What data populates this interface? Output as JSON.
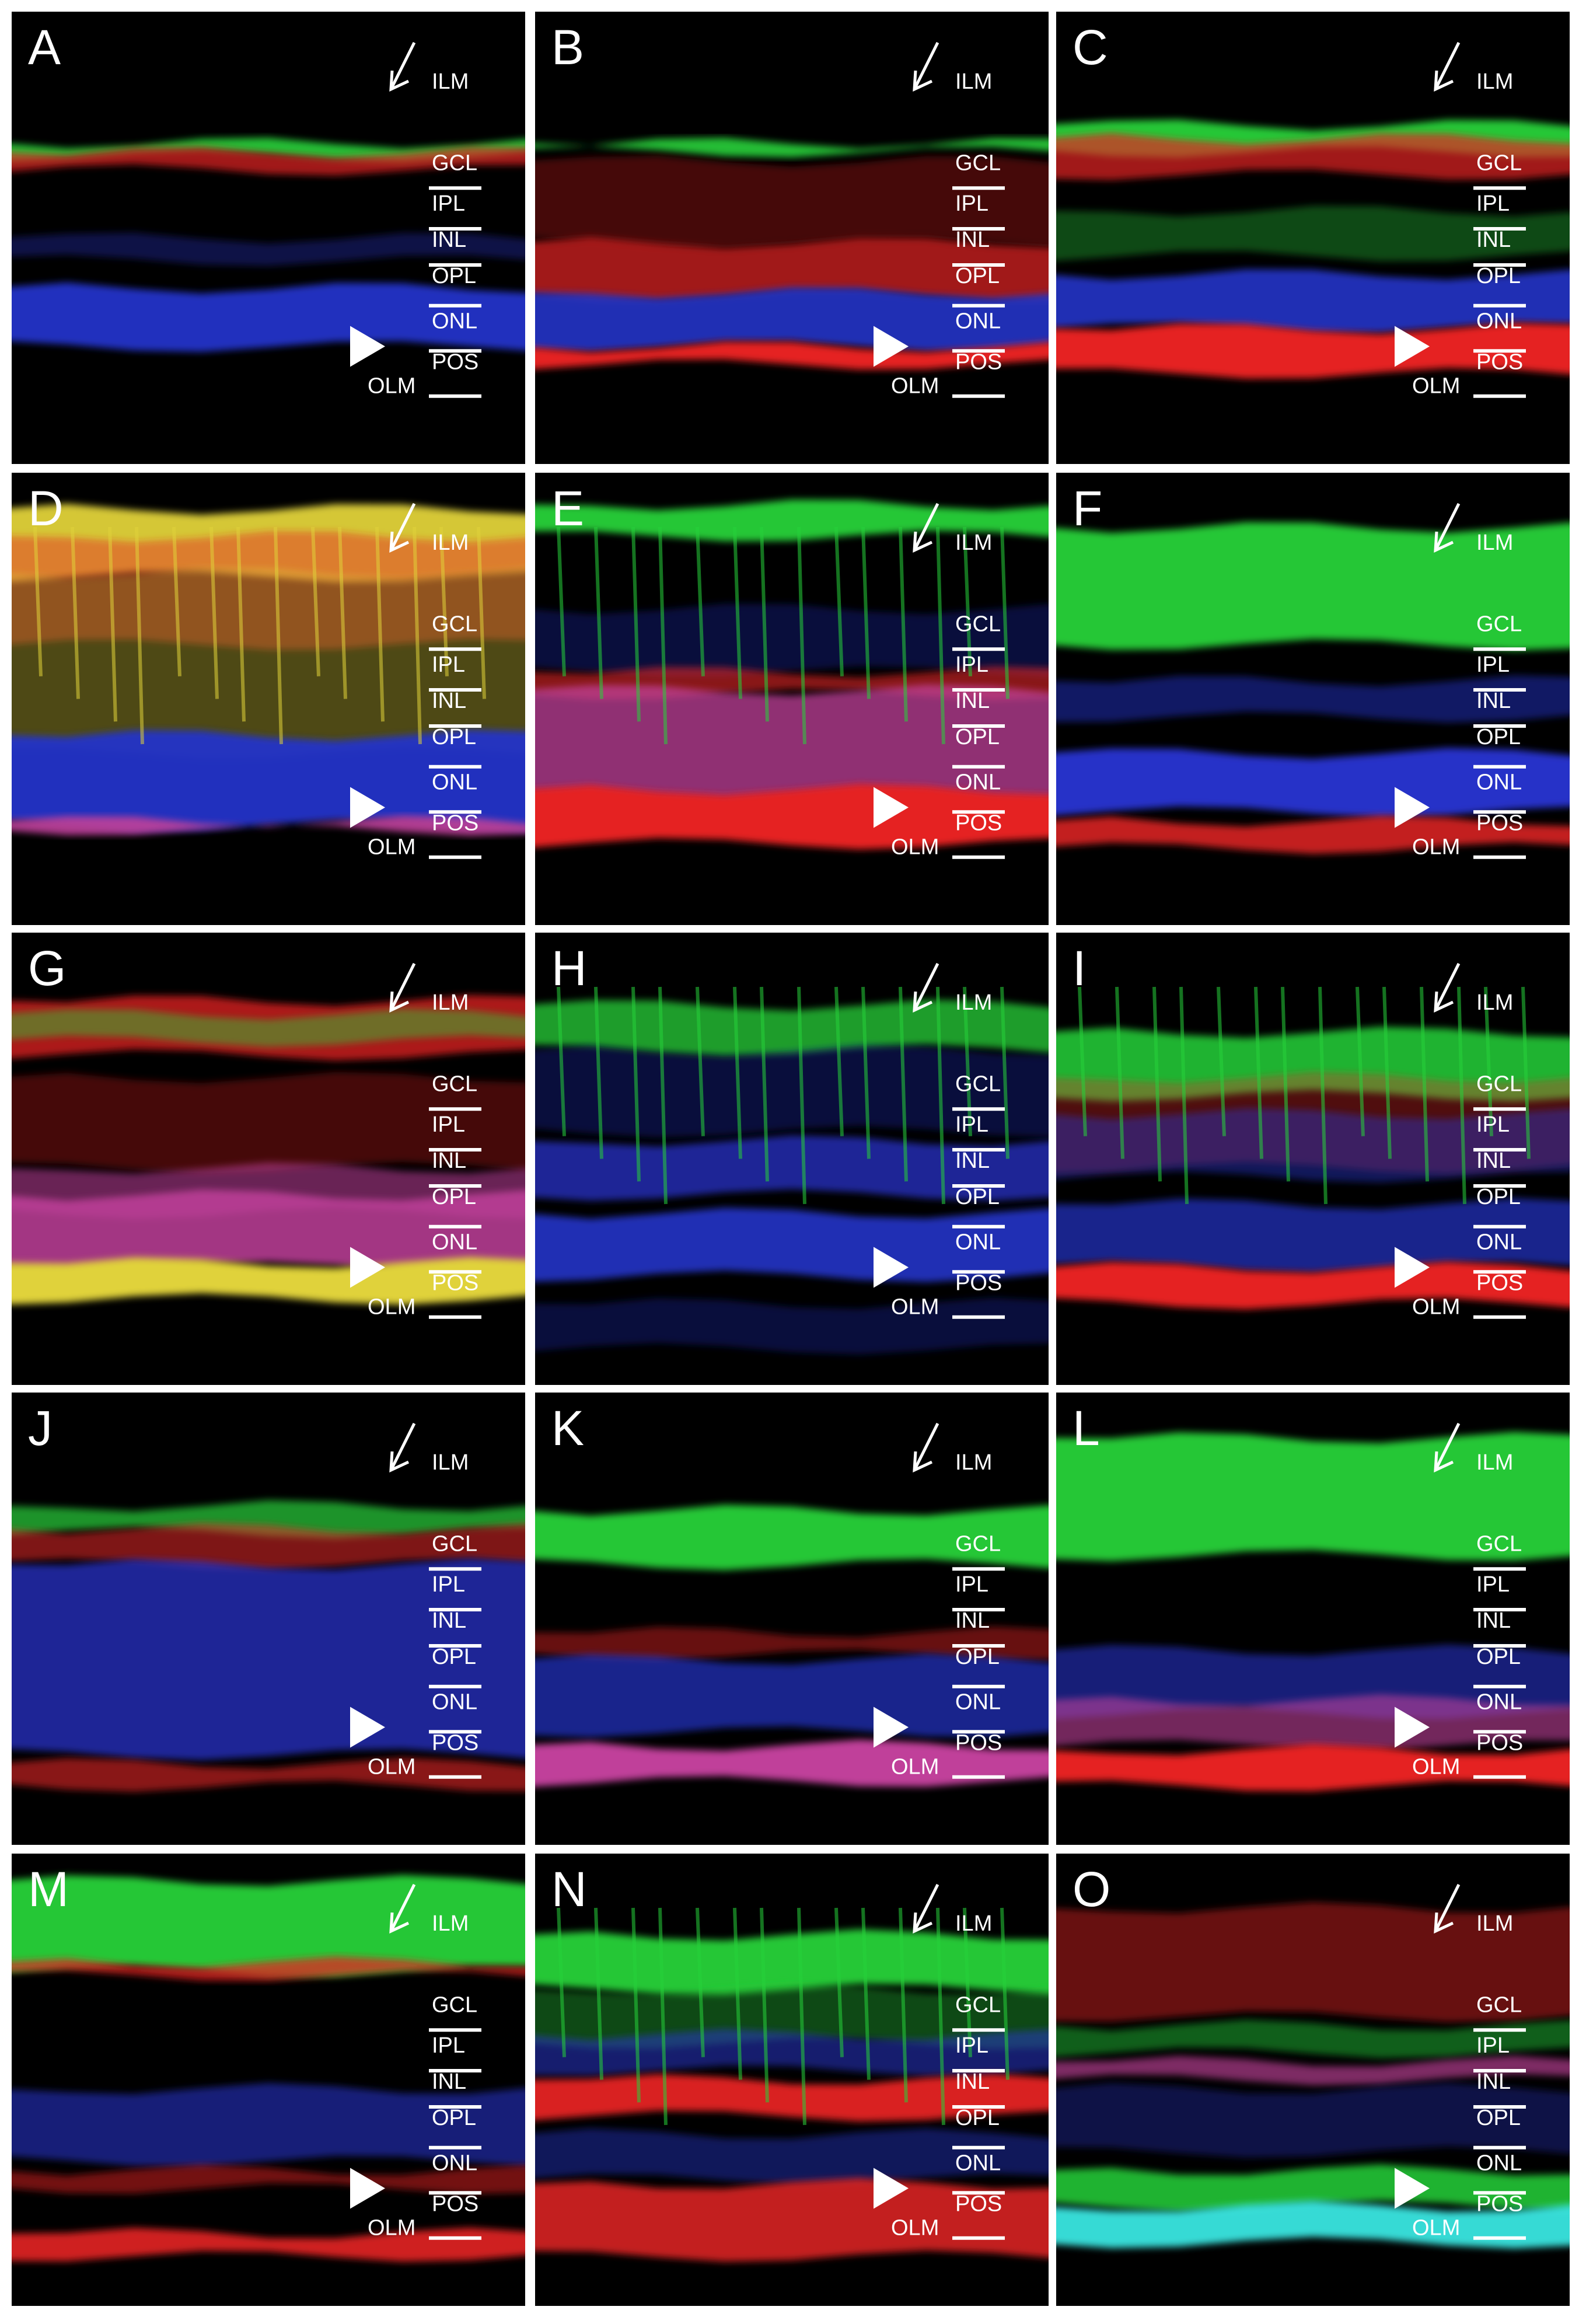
{
  "figure": {
    "colors": {
      "background": "#000000",
      "text": "#ffffff",
      "blue": "#2533c8",
      "red": "#e52424",
      "green": "#27d23a",
      "yellow": "#e0d23a",
      "cyan": "#38e6e0",
      "magenta": "#c0409a"
    },
    "olm_label": "OLM",
    "panels": [
      {
        "letter": "A",
        "layers": [
          "ILM",
          "GCL",
          "IPL",
          "INL",
          "OPL",
          "ONL",
          "POS"
        ],
        "bands": [
          {
            "color": "green",
            "top": 0.29,
            "height": 0.03,
            "opacity": 0.9
          },
          {
            "color": "red",
            "top": 0.31,
            "height": 0.04,
            "opacity": 0.7
          },
          {
            "color": "blue",
            "top": 0.5,
            "height": 0.05,
            "opacity": 0.35
          },
          {
            "color": "blue",
            "top": 0.61,
            "height": 0.13,
            "opacity": 0.95
          }
        ]
      },
      {
        "letter": "B",
        "layers": [
          "ILM",
          "GCL",
          "IPL",
          "INL",
          "OPL",
          "ONL",
          "POS"
        ],
        "bands": [
          {
            "color": "green",
            "top": 0.29,
            "height": 0.02,
            "opacity": 0.9
          },
          {
            "color": "red",
            "top": 0.33,
            "height": 0.18,
            "opacity": 0.3
          },
          {
            "color": "red",
            "top": 0.51,
            "height": 0.12,
            "opacity": 0.7
          },
          {
            "color": "blue",
            "top": 0.62,
            "height": 0.12,
            "opacity": 0.9
          },
          {
            "color": "red",
            "top": 0.74,
            "height": 0.04,
            "opacity": 1
          }
        ]
      },
      {
        "letter": "C",
        "layers": [
          "ILM",
          "GCL",
          "IPL",
          "INL",
          "OPL",
          "ONL",
          "POS"
        ],
        "bands": [
          {
            "color": "green",
            "top": 0.25,
            "height": 0.06,
            "opacity": 0.95
          },
          {
            "color": "red",
            "top": 0.28,
            "height": 0.08,
            "opacity": 0.7
          },
          {
            "color": "green",
            "top": 0.44,
            "height": 0.1,
            "opacity": 0.35
          },
          {
            "color": "blue",
            "top": 0.58,
            "height": 0.12,
            "opacity": 0.9
          },
          {
            "color": "red",
            "top": 0.7,
            "height": 0.1,
            "opacity": 1
          }
        ]
      },
      {
        "letter": "D",
        "layers": [
          "ILM",
          "GCL",
          "IPL",
          "INL",
          "OPL",
          "ONL",
          "POS"
        ],
        "bands": [
          {
            "color": "yellow",
            "top": 0.08,
            "height": 0.15,
            "opacity": 0.95
          },
          {
            "color": "red",
            "top": 0.14,
            "height": 0.24,
            "opacity": 0.45
          },
          {
            "color": "yellow",
            "top": 0.22,
            "height": 0.4,
            "opacity": 0.35
          },
          {
            "color": "blue",
            "top": 0.58,
            "height": 0.2,
            "opacity": 0.95
          },
          {
            "color": "magenta",
            "top": 0.77,
            "height": 0.02,
            "opacity": 0.9
          }
        ]
      },
      {
        "letter": "E",
        "layers": [
          "ILM",
          "GCL",
          "IPL",
          "INL",
          "OPL",
          "ONL",
          "POS"
        ],
        "bands": [
          {
            "color": "green",
            "top": 0.07,
            "height": 0.07,
            "opacity": 0.95
          },
          {
            "color": "blue",
            "top": 0.3,
            "height": 0.14,
            "opacity": 0.3
          },
          {
            "color": "red",
            "top": 0.44,
            "height": 0.05,
            "opacity": 0.6
          },
          {
            "color": "magenta",
            "top": 0.48,
            "height": 0.3,
            "opacity": 0.75
          },
          {
            "color": "red",
            "top": 0.7,
            "height": 0.12,
            "opacity": 1
          }
        ]
      },
      {
        "letter": "F",
        "layers": [
          "ILM",
          "GCL",
          "IPL",
          "INL",
          "OPL",
          "ONL",
          "POS"
        ],
        "bands": [
          {
            "color": "green",
            "top": 0.12,
            "height": 0.26,
            "opacity": 0.95
          },
          {
            "color": "blue",
            "top": 0.46,
            "height": 0.08,
            "opacity": 0.5
          },
          {
            "color": "blue",
            "top": 0.62,
            "height": 0.13,
            "opacity": 1
          },
          {
            "color": "red",
            "top": 0.77,
            "height": 0.06,
            "opacity": 0.85
          }
        ]
      },
      {
        "letter": "G",
        "layers": [
          "ILM",
          "GCL",
          "IPL",
          "INL",
          "OPL",
          "ONL",
          "POS"
        ],
        "bands": [
          {
            "color": "red",
            "top": 0.15,
            "height": 0.12,
            "opacity": 0.75
          },
          {
            "color": "green",
            "top": 0.18,
            "height": 0.06,
            "opacity": 0.45
          },
          {
            "color": "red",
            "top": 0.32,
            "height": 0.2,
            "opacity": 0.3
          },
          {
            "color": "magenta",
            "top": 0.52,
            "height": 0.1,
            "opacity": 0.55
          },
          {
            "color": "magenta",
            "top": 0.58,
            "height": 0.16,
            "opacity": 0.85
          },
          {
            "color": "yellow",
            "top": 0.73,
            "height": 0.08,
            "opacity": 1
          }
        ]
      },
      {
        "letter": "H",
        "layers": [
          "ILM",
          "GCL",
          "IPL",
          "INL",
          "OPL",
          "ONL",
          "POS"
        ],
        "bands": [
          {
            "color": "green",
            "top": 0.16,
            "height": 0.1,
            "opacity": 0.75
          },
          {
            "color": "blue",
            "top": 0.26,
            "height": 0.18,
            "opacity": 0.3
          },
          {
            "color": "blue",
            "top": 0.46,
            "height": 0.12,
            "opacity": 0.75
          },
          {
            "color": "blue",
            "top": 0.62,
            "height": 0.14,
            "opacity": 0.9
          },
          {
            "color": "blue",
            "top": 0.82,
            "height": 0.1,
            "opacity": 0.3
          }
        ]
      },
      {
        "letter": "I",
        "layers": [
          "ILM",
          "GCL",
          "IPL",
          "INL",
          "OPL",
          "ONL",
          "POS"
        ],
        "bands": [
          {
            "color": "green",
            "top": 0.22,
            "height": 0.14,
            "opacity": 0.85
          },
          {
            "color": "red",
            "top": 0.32,
            "height": 0.2,
            "opacity": 0.35
          },
          {
            "color": "blue",
            "top": 0.4,
            "height": 0.14,
            "opacity": 0.45
          },
          {
            "color": "blue",
            "top": 0.6,
            "height": 0.14,
            "opacity": 0.7
          },
          {
            "color": "red",
            "top": 0.74,
            "height": 0.08,
            "opacity": 1
          }
        ]
      },
      {
        "letter": "J",
        "layers": [
          "ILM",
          "GCL",
          "IPL",
          "INL",
          "OPL",
          "ONL",
          "POS"
        ],
        "bands": [
          {
            "color": "green",
            "top": 0.25,
            "height": 0.06,
            "opacity": 0.7
          },
          {
            "color": "red",
            "top": 0.3,
            "height": 0.08,
            "opacity": 0.55
          },
          {
            "color": "blue",
            "top": 0.38,
            "height": 0.42,
            "opacity": 0.75
          },
          {
            "color": "red",
            "top": 0.82,
            "height": 0.05,
            "opacity": 0.6
          }
        ]
      },
      {
        "letter": "K",
        "layers": [
          "ILM",
          "GCL",
          "IPL",
          "INL",
          "OPL",
          "ONL",
          "POS"
        ],
        "bands": [
          {
            "color": "green",
            "top": 0.26,
            "height": 0.12,
            "opacity": 0.95
          },
          {
            "color": "red",
            "top": 0.53,
            "height": 0.05,
            "opacity": 0.45
          },
          {
            "color": "blue",
            "top": 0.59,
            "height": 0.16,
            "opacity": 0.7
          },
          {
            "color": "magenta",
            "top": 0.78,
            "height": 0.08,
            "opacity": 1
          }
        ]
      },
      {
        "letter": "L",
        "layers": [
          "ILM",
          "GCL",
          "IPL",
          "INL",
          "OPL",
          "ONL",
          "POS"
        ],
        "bands": [
          {
            "color": "green",
            "top": 0.1,
            "height": 0.26,
            "opacity": 0.95
          },
          {
            "color": "blue",
            "top": 0.57,
            "height": 0.14,
            "opacity": 0.6
          },
          {
            "color": "magenta",
            "top": 0.68,
            "height": 0.1,
            "opacity": 0.6
          },
          {
            "color": "red",
            "top": 0.79,
            "height": 0.08,
            "opacity": 1
          }
        ]
      },
      {
        "letter": "M",
        "layers": [
          "ILM",
          "GCL",
          "IPL",
          "INL",
          "OPL",
          "ONL",
          "POS"
        ],
        "bands": [
          {
            "color": "green",
            "top": 0.06,
            "height": 0.2,
            "opacity": 0.95
          },
          {
            "color": "red",
            "top": 0.24,
            "height": 0.03,
            "opacity": 0.75
          },
          {
            "color": "blue",
            "top": 0.52,
            "height": 0.16,
            "opacity": 0.6
          },
          {
            "color": "red",
            "top": 0.7,
            "height": 0.04,
            "opacity": 0.5
          },
          {
            "color": "red",
            "top": 0.84,
            "height": 0.05,
            "opacity": 0.9
          }
        ]
      },
      {
        "letter": "N",
        "layers": [
          "ILM",
          "GCL",
          "IPL",
          "INL",
          "OPL",
          "ONL",
          "POS"
        ],
        "bands": [
          {
            "color": "green",
            "top": 0.18,
            "height": 0.12,
            "opacity": 0.95
          },
          {
            "color": "green",
            "top": 0.3,
            "height": 0.12,
            "opacity": 0.35
          },
          {
            "color": "blue",
            "top": 0.4,
            "height": 0.08,
            "opacity": 0.55
          },
          {
            "color": "red",
            "top": 0.5,
            "height": 0.08,
            "opacity": 0.95
          },
          {
            "color": "blue",
            "top": 0.62,
            "height": 0.1,
            "opacity": 0.45
          },
          {
            "color": "red",
            "top": 0.73,
            "height": 0.16,
            "opacity": 0.85
          }
        ]
      },
      {
        "letter": "O",
        "layers": [
          "ILM",
          "GCL",
          "IPL",
          "INL",
          "OPL",
          "ONL",
          "POS"
        ],
        "bands": [
          {
            "color": "red",
            "top": 0.12,
            "height": 0.24,
            "opacity": 0.45
          },
          {
            "color": "green",
            "top": 0.38,
            "height": 0.06,
            "opacity": 0.45
          },
          {
            "color": "magenta",
            "top": 0.46,
            "height": 0.04,
            "opacity": 0.65
          },
          {
            "color": "blue",
            "top": 0.52,
            "height": 0.14,
            "opacity": 0.35
          },
          {
            "color": "green",
            "top": 0.7,
            "height": 0.08,
            "opacity": 0.85
          },
          {
            "color": "cyan",
            "top": 0.78,
            "height": 0.08,
            "opacity": 0.95
          }
        ]
      }
    ]
  }
}
